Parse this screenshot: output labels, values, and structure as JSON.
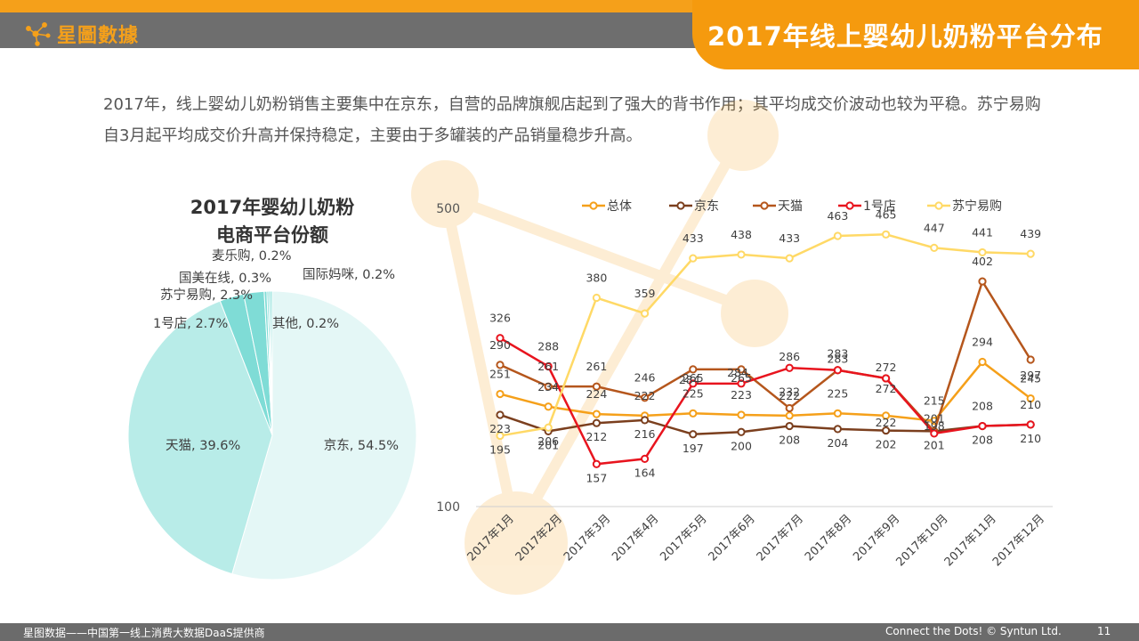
{
  "header": {
    "brand": "星圖數據",
    "title": "2017年线上婴幼儿奶粉平台分布"
  },
  "description": "2017年，线上婴幼儿奶粉销售主要集中在京东，自营的品牌旗舰店起到了强大的背书作用；其平均成交价波动也较为平稳。苏宁易购自3月起平均成交价升高并保持稳定，主要由于多罐装的产品销量稳步升高。",
  "footer": {
    "left": "星图数据——中国第一线上消费大数据DaaS提供商",
    "right": "Connect the Dots! © Syntun Ltd.",
    "page": "11"
  },
  "colors": {
    "orange": "#f5a01a",
    "jd": "#7b3f1e",
    "tmall": "#b5561c",
    "yhd": "#e8141e",
    "suning": "#ffd966",
    "pie_main": "#e4f7f6",
    "pie_tmall": "#b8ece8",
    "pie_small": "#7fdcd6"
  },
  "chart_data": [
    {
      "type": "pie",
      "title": "2017年婴幼儿奶粉\n电商平台份额",
      "title_lines": [
        "2017年婴幼儿奶粉",
        "电商平台份额"
      ],
      "slices": [
        {
          "label": "京东",
          "value": 54.5,
          "text": "京东, 54.5%"
        },
        {
          "label": "天猫",
          "value": 39.6,
          "text": "天猫, 39.6%"
        },
        {
          "label": "1号店",
          "value": 2.7,
          "text": "1号店, 2.7%"
        },
        {
          "label": "苏宁易购",
          "value": 2.3,
          "text": "苏宁易购, 2.3%"
        },
        {
          "label": "国美在线",
          "value": 0.3,
          "text": "国美在线, 0.3%"
        },
        {
          "label": "麦乐购",
          "value": 0.2,
          "text": "麦乐购, 0.2%"
        },
        {
          "label": "国际妈咪",
          "value": 0.2,
          "text": "国际妈咪, 0.2%"
        },
        {
          "label": "其他",
          "value": 0.2,
          "text": "其他, 0.2%"
        }
      ]
    },
    {
      "type": "line",
      "categories": [
        "2017年1月",
        "2017年2月",
        "2017年3月",
        "2017年4月",
        "2017年5月",
        "2017年6月",
        "2017年7月",
        "2017年8月",
        "2017年9月",
        "2017年10月",
        "2017年11月",
        "2017年12月"
      ],
      "ylim": [
        100,
        500
      ],
      "y_ticks": [
        "500",
        "100"
      ],
      "legend": "top",
      "series": [
        {
          "name": "总体",
          "values": [
            251,
            234,
            224,
            222,
            225,
            223,
            222,
            225,
            222,
            215,
            294,
            245
          ]
        },
        {
          "name": "京东",
          "values": [
            223,
            201,
            212,
            216,
            197,
            200,
            208,
            204,
            202,
            201,
            208,
            210
          ]
        },
        {
          "name": "天猫",
          "values": [
            290,
            261,
            261,
            246,
            284,
            284,
            232,
            283,
            272,
            201,
            402,
            297
          ]
        },
        {
          "name": "1号店",
          "values": [
            326,
            288,
            157,
            164,
            265,
            265,
            286,
            283,
            272,
            198,
            208,
            210
          ]
        },
        {
          "name": "苏宁易购",
          "values": [
            195,
            206,
            380,
            359,
            433,
            438,
            433,
            463,
            465,
            447,
            441,
            439
          ]
        }
      ]
    }
  ]
}
